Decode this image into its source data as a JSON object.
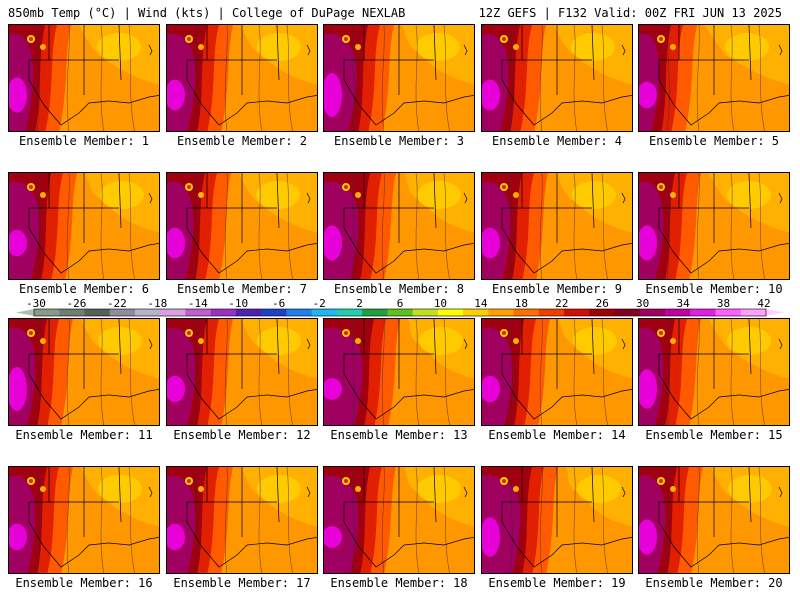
{
  "header": {
    "left": "850mb Temp (°C) | Wind (kts) | College of DuPage NEXLAB",
    "right": "12Z GEFS | F132 Valid: 00Z FRI JUN 13 2025"
  },
  "colorbar": {
    "tick_labels": [
      "-30",
      "-26",
      "-22",
      "-18",
      "-14",
      "-10",
      "-6",
      "-2",
      "2",
      "6",
      "10",
      "14",
      "18",
      "22",
      "26",
      "30",
      "34",
      "38",
      "42"
    ],
    "colors": [
      "#8a9a8a",
      "#6f7f74",
      "#55605a",
      "#8d8da0",
      "#b5b5c8",
      "#d8a0e0",
      "#c060d0",
      "#9a30c0",
      "#5020b0",
      "#2040c8",
      "#2080e8",
      "#20b8f0",
      "#20d0b0",
      "#20a040",
      "#60c020",
      "#c0e020",
      "#ffff00",
      "#ffd000",
      "#ffa000",
      "#ff7000",
      "#f04000",
      "#d01000",
      "#a00000",
      "#800020",
      "#a00060",
      "#c000a0",
      "#e020e0",
      "#ff60ff",
      "#ffa0ff"
    ]
  },
  "map_palette": {
    "hot": "#ff00ff",
    "very_warm": "#a00060",
    "dark_red": "#a00010",
    "red": "#e02000",
    "orange_red": "#ff5a00",
    "orange": "#ff9800",
    "amber": "#ffb000",
    "yellow": "#ffd000"
  },
  "members": [
    {
      "label": "Ensemble Member: 1"
    },
    {
      "label": "Ensemble Member: 2"
    },
    {
      "label": "Ensemble Member: 3"
    },
    {
      "label": "Ensemble Member: 4"
    },
    {
      "label": "Ensemble Member: 5"
    },
    {
      "label": "Ensemble Member: 6"
    },
    {
      "label": "Ensemble Member: 7"
    },
    {
      "label": "Ensemble Member: 8"
    },
    {
      "label": "Ensemble Member: 9"
    },
    {
      "label": "Ensemble Member: 10"
    },
    {
      "label": "Ensemble Member: 11"
    },
    {
      "label": "Ensemble Member: 12"
    },
    {
      "label": "Ensemble Member: 13"
    },
    {
      "label": "Ensemble Member: 14"
    },
    {
      "label": "Ensemble Member: 15"
    },
    {
      "label": "Ensemble Member: 16"
    },
    {
      "label": "Ensemble Member: 17"
    },
    {
      "label": "Ensemble Member: 18"
    },
    {
      "label": "Ensemble Member: 19"
    },
    {
      "label": "Ensemble Member: 20"
    }
  ]
}
